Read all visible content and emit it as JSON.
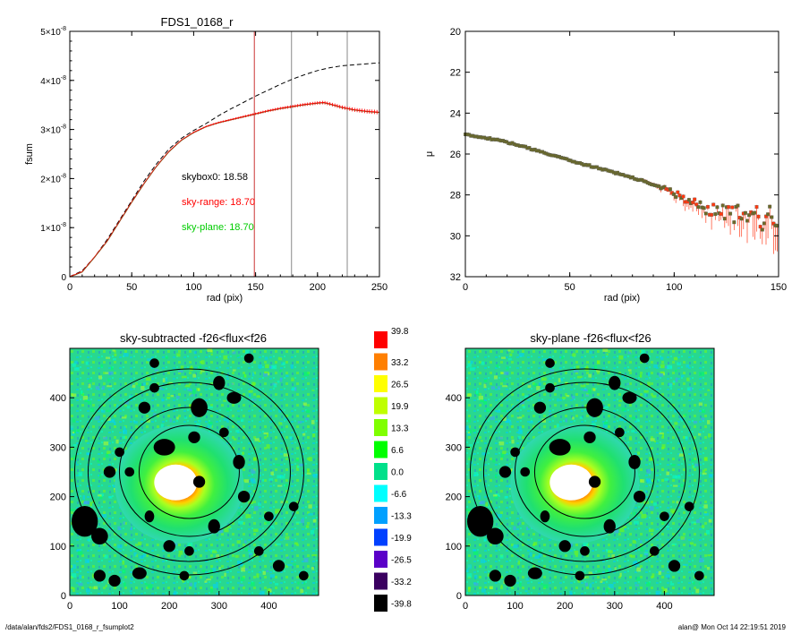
{
  "footer": {
    "path": "/data/alan/fds2/FDS1_0168_r_fsumplot2",
    "user_stamp": "alan@  Mon Oct 14 22:19:51 2019"
  },
  "colors": {
    "sky_range": "#ff0000",
    "sky_plane": "#00cc00",
    "skybox": "#000000",
    "vline_red": "#cc3333",
    "vline_gray": "#888888"
  },
  "chart_data": [
    {
      "type": "line",
      "title": "FDS1_0168_r",
      "xlabel": "rad (pix)",
      "ylabel": "fsum",
      "xlim": [
        0,
        250
      ],
      "ylim": [
        0,
        5e-08
      ],
      "xticks": [
        0,
        50,
        100,
        150,
        200,
        250
      ],
      "yticks": [
        {
          "value": 0,
          "mantissa": "0",
          "exp": ""
        },
        {
          "value": 1e-08,
          "mantissa": "1×10",
          "exp": "-8"
        },
        {
          "value": 2e-08,
          "mantissa": "2×10",
          "exp": "-8"
        },
        {
          "value": 3e-08,
          "mantissa": "3×10",
          "exp": "-8"
        },
        {
          "value": 4e-08,
          "mantissa": "4×10",
          "exp": "-8"
        },
        {
          "value": 5e-08,
          "mantissa": "5×10",
          "exp": "-8"
        }
      ],
      "vlines": [
        {
          "x": 149,
          "color": "#cc3333"
        },
        {
          "x": 179,
          "color": "#888888"
        },
        {
          "x": 224,
          "color": "#888888"
        }
      ],
      "annotations": [
        {
          "text": "skybox0: 18.58",
          "color": "#000000"
        },
        {
          "text": "sky-range: 18.70",
          "color": "#ff0000"
        },
        {
          "text": "sky-plane: 18.70",
          "color": "#00cc00"
        }
      ],
      "series": [
        {
          "style": "dashed",
          "color": "#000000",
          "x": [
            0,
            10,
            20,
            30,
            40,
            50,
            60,
            70,
            80,
            90,
            100,
            110,
            120,
            130,
            140,
            150,
            160,
            170,
            180,
            190,
            200,
            210,
            220,
            230,
            240,
            250
          ],
          "y": [
            0,
            1.2e-09,
            4e-09,
            7.5e-09,
            1.15e-08,
            1.55e-08,
            1.95e-08,
            2.3e-08,
            2.6e-08,
            2.82e-08,
            2.98e-08,
            3.12e-08,
            3.28e-08,
            3.42e-08,
            3.55e-08,
            3.68e-08,
            3.8e-08,
            3.92e-08,
            4.03e-08,
            4.12e-08,
            4.2e-08,
            4.26e-08,
            4.3e-08,
            4.32e-08,
            4.34e-08,
            4.36e-08
          ]
        },
        {
          "style": "errorbars",
          "color": "#ff0000",
          "x": [
            0,
            10,
            20,
            30,
            40,
            50,
            60,
            70,
            80,
            90,
            100,
            110,
            120,
            130,
            140,
            150,
            160,
            170,
            180,
            190,
            200,
            205,
            210,
            220,
            230,
            240,
            250
          ],
          "y": [
            0,
            1e-09,
            4e-09,
            7.2e-09,
            1.12e-08,
            1.52e-08,
            1.9e-08,
            2.25e-08,
            2.55e-08,
            2.78e-08,
            2.94e-08,
            3.06e-08,
            3.14e-08,
            3.2e-08,
            3.26e-08,
            3.32e-08,
            3.38e-08,
            3.43e-08,
            3.47e-08,
            3.51e-08,
            3.54e-08,
            3.55e-08,
            3.52e-08,
            3.45e-08,
            3.4e-08,
            3.37e-08,
            3.35e-08
          ]
        }
      ]
    },
    {
      "type": "scatter",
      "title": "",
      "xlabel": "rad (pix)",
      "ylabel": "μ",
      "xlim": [
        0,
        150
      ],
      "ylim": [
        32,
        20
      ],
      "xticks": [
        0,
        50,
        100,
        150
      ],
      "yticks": [
        20,
        22,
        24,
        26,
        28,
        30,
        32
      ],
      "series": [
        {
          "style": "points",
          "color": "#6b6b2a",
          "x": [
            0,
            5,
            10,
            15,
            20,
            25,
            30,
            35,
            40,
            45,
            50,
            55,
            60,
            65,
            70,
            75,
            80,
            85,
            90,
            95,
            100,
            105,
            110,
            115,
            120,
            125,
            130,
            135,
            140,
            145,
            150
          ],
          "y": [
            25.05,
            25.12,
            25.2,
            25.3,
            25.42,
            25.55,
            25.7,
            25.85,
            26.0,
            26.15,
            26.3,
            26.45,
            26.58,
            26.72,
            26.85,
            27.0,
            27.15,
            27.3,
            27.5,
            27.65,
            27.9,
            28.1,
            28.35,
            28.6,
            28.7,
            28.8,
            28.85,
            28.9,
            29.0,
            29.05,
            29.1
          ]
        }
      ]
    },
    {
      "type": "heatmap",
      "title": "sky-subtracted -f26<flux<f26",
      "xlim": [
        0,
        500
      ],
      "ylim": [
        0,
        500
      ],
      "xticks": [
        0,
        100,
        200,
        300,
        400
      ],
      "yticks": [
        0,
        100,
        200,
        300,
        400
      ]
    },
    {
      "type": "heatmap",
      "title": "sky-plane -f26<flux<f26",
      "xlim": [
        0,
        500
      ],
      "ylim": [
        0,
        500
      ],
      "xticks": [
        0,
        100,
        200,
        300,
        400
      ],
      "yticks": [
        0,
        100,
        200,
        300,
        400
      ]
    }
  ],
  "colorbar": {
    "levels": [
      {
        "label": "39.8",
        "color": "#ff0000"
      },
      {
        "label": "33.2",
        "color": "#ff7f00"
      },
      {
        "label": "26.5",
        "color": "#ffff00"
      },
      {
        "label": "19.9",
        "color": "#bfff00"
      },
      {
        "label": "13.3",
        "color": "#7fff00"
      },
      {
        "label": "6.6",
        "color": "#00ff00"
      },
      {
        "label": "0.0",
        "color": "#00e08a"
      },
      {
        "label": "-6.6",
        "color": "#00ffff"
      },
      {
        "label": "-13.3",
        "color": "#00a0ff"
      },
      {
        "label": "-19.9",
        "color": "#0040ff"
      },
      {
        "label": "-26.5",
        "color": "#5a00c8"
      },
      {
        "label": "-33.2",
        "color": "#3a0060"
      },
      {
        "label": "-39.8",
        "color": "#000000"
      }
    ]
  }
}
